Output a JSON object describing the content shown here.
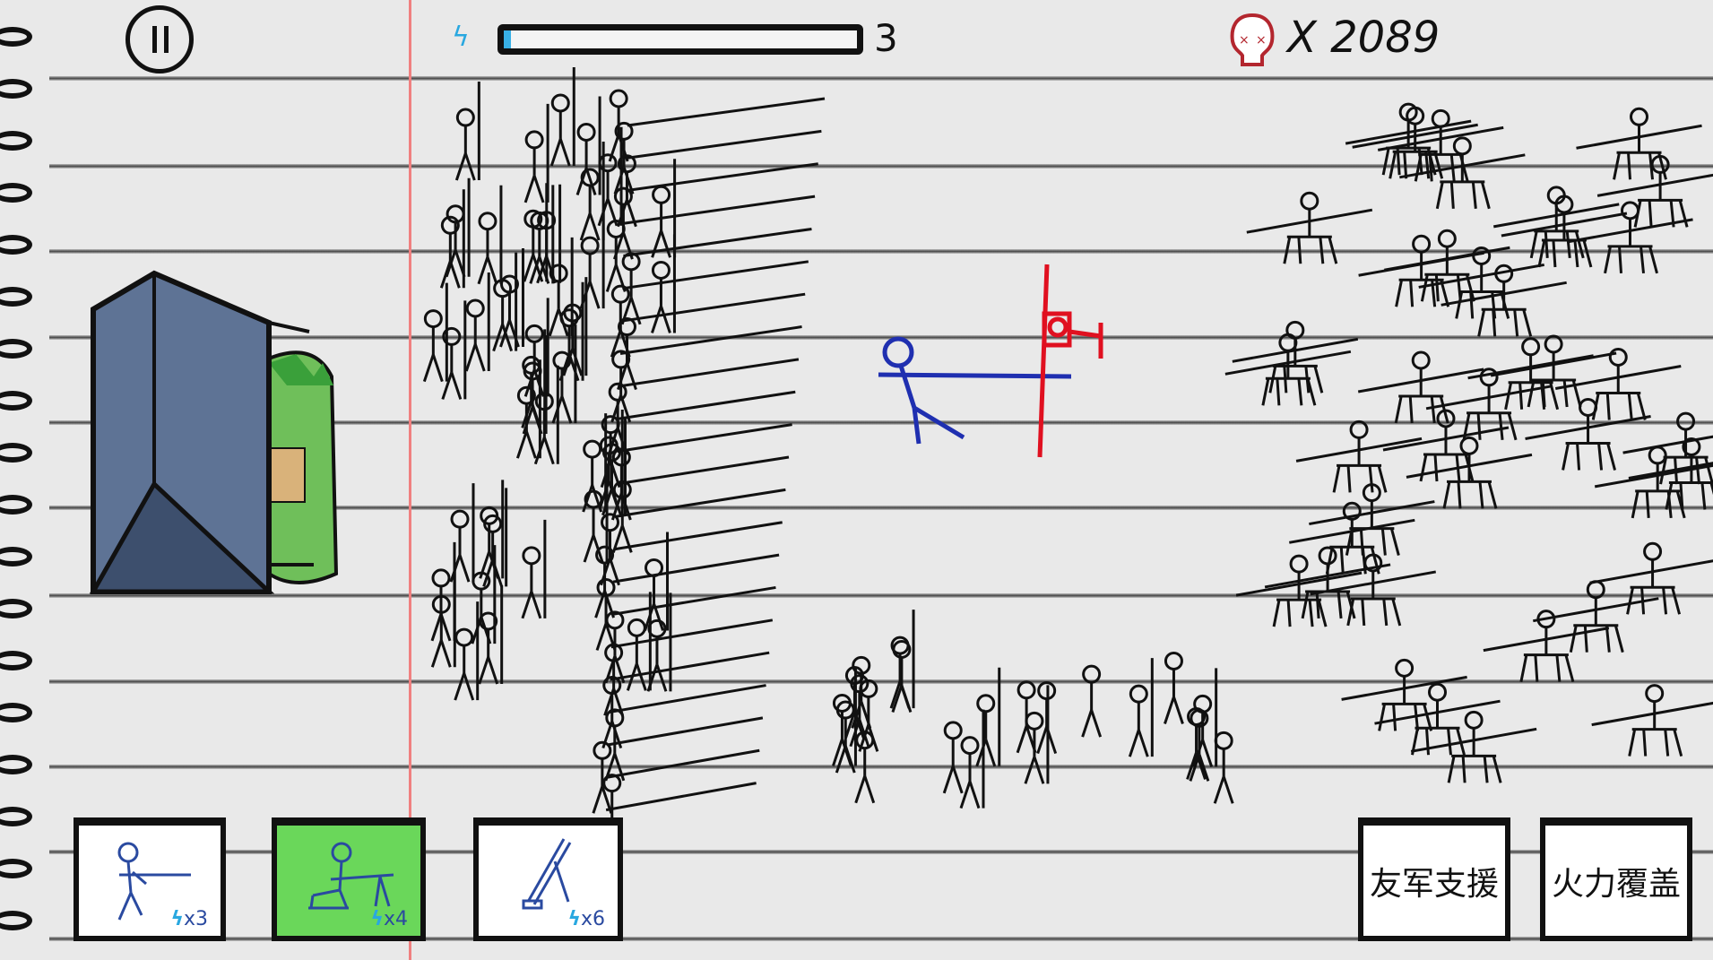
{
  "hud": {
    "pause_icon": "pause-icon",
    "energy_icon": "lightning-bolt-icon",
    "energy_fill": 0.02,
    "energy_count": "3",
    "kill_icon": "skull-icon",
    "kill_count": "X 2089",
    "colors": {
      "energy": "#29a8e0",
      "skull": "#b3262e",
      "selected_card": "#6ad75a",
      "player": "#1f2fb0",
      "target": "#e01020"
    }
  },
  "unit_cards": [
    {
      "name": "rifleman",
      "icon": "rifleman-icon",
      "cost": "x3",
      "selected": false
    },
    {
      "name": "machine-gunner",
      "icon": "machine-gunner-icon",
      "cost": "x4",
      "selected": true
    },
    {
      "name": "mortar",
      "icon": "mortar-icon",
      "cost": "x6",
      "selected": false
    }
  ],
  "support_buttons": [
    {
      "label": "友军支援"
    },
    {
      "label": "火力覆盖"
    }
  ]
}
